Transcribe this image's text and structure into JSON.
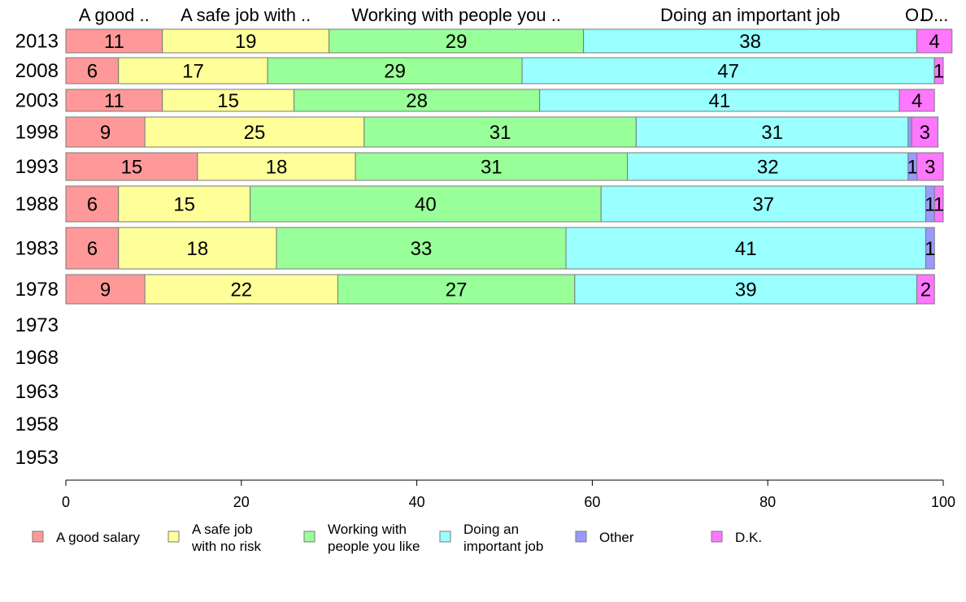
{
  "chart_data": {
    "type": "bar",
    "orientation": "horizontal",
    "stacked": true,
    "categories": [
      "2013",
      "2008",
      "2003",
      "1998",
      "1993",
      "1988",
      "1983",
      "1978",
      "1973",
      "1968",
      "1963",
      "1958",
      "1953"
    ],
    "series": [
      {
        "name": "A good salary",
        "short_label": "A good ..",
        "color": "#ff9999",
        "values": [
          11,
          6,
          11,
          9,
          15,
          6,
          6,
          9,
          null,
          null,
          null,
          null,
          null
        ]
      },
      {
        "name": "A safe job with no risk",
        "short_label": "A safe job with ..",
        "color": "#ffff99",
        "values": [
          19,
          17,
          15,
          25,
          18,
          15,
          18,
          22,
          null,
          null,
          null,
          null,
          null
        ]
      },
      {
        "name": "Working with people you like",
        "short_label": "Working with people you ..",
        "color": "#99ff99",
        "values": [
          29,
          29,
          28,
          31,
          31,
          40,
          33,
          27,
          null,
          null,
          null,
          null,
          null
        ]
      },
      {
        "name": "Doing an important job",
        "short_label": "Doing an important job",
        "color": "#99ffff",
        "values": [
          38,
          47,
          41,
          31,
          32,
          37,
          41,
          39,
          null,
          null,
          null,
          null,
          null
        ]
      },
      {
        "name": "Other",
        "short_label": "O..",
        "color": "#9999ff",
        "values": [
          0,
          0,
          0,
          0.4,
          1,
          1,
          1,
          0,
          null,
          null,
          null,
          null,
          null
        ]
      },
      {
        "name": "D.K.",
        "short_label": "D...",
        "color": "#ff77ff",
        "values": [
          4,
          1,
          4,
          3,
          3,
          1,
          0,
          2,
          null,
          null,
          null,
          null,
          null
        ]
      }
    ],
    "data_labels": [
      [
        "11",
        "19",
        "29",
        "38",
        "",
        "4"
      ],
      [
        "6",
        "17",
        "29",
        "47",
        "",
        "1"
      ],
      [
        "11",
        "15",
        "28",
        "41",
        "",
        "4"
      ],
      [
        "9",
        "25",
        "31",
        "31",
        "",
        "3"
      ],
      [
        "15",
        "18",
        "31",
        "32",
        "1",
        "3"
      ],
      [
        "6",
        "15",
        "40",
        "37",
        "1",
        "1"
      ],
      [
        "6",
        "18",
        "33",
        "41",
        "1",
        ""
      ],
      [
        "9",
        "22",
        "27",
        "39",
        "",
        "2"
      ]
    ],
    "x_ticks": [
      "0",
      "20",
      "40",
      "60",
      "80",
      "100"
    ],
    "xlim": [
      0,
      100
    ],
    "legend": [
      {
        "lines": [
          "A good salary"
        ],
        "color": "#ff9999"
      },
      {
        "lines": [
          "A safe job",
          "with no risk"
        ],
        "color": "#ffff99"
      },
      {
        "lines": [
          "Working with",
          "people you like"
        ],
        "color": "#99ff99"
      },
      {
        "lines": [
          "Doing an",
          "important job"
        ],
        "color": "#99ffff"
      },
      {
        "lines": [
          "Other"
        ],
        "color": "#9999ff"
      },
      {
        "lines": [
          "D.K."
        ],
        "color": "#ff77ff"
      }
    ],
    "legend_position": "bottom",
    "grid": false
  }
}
